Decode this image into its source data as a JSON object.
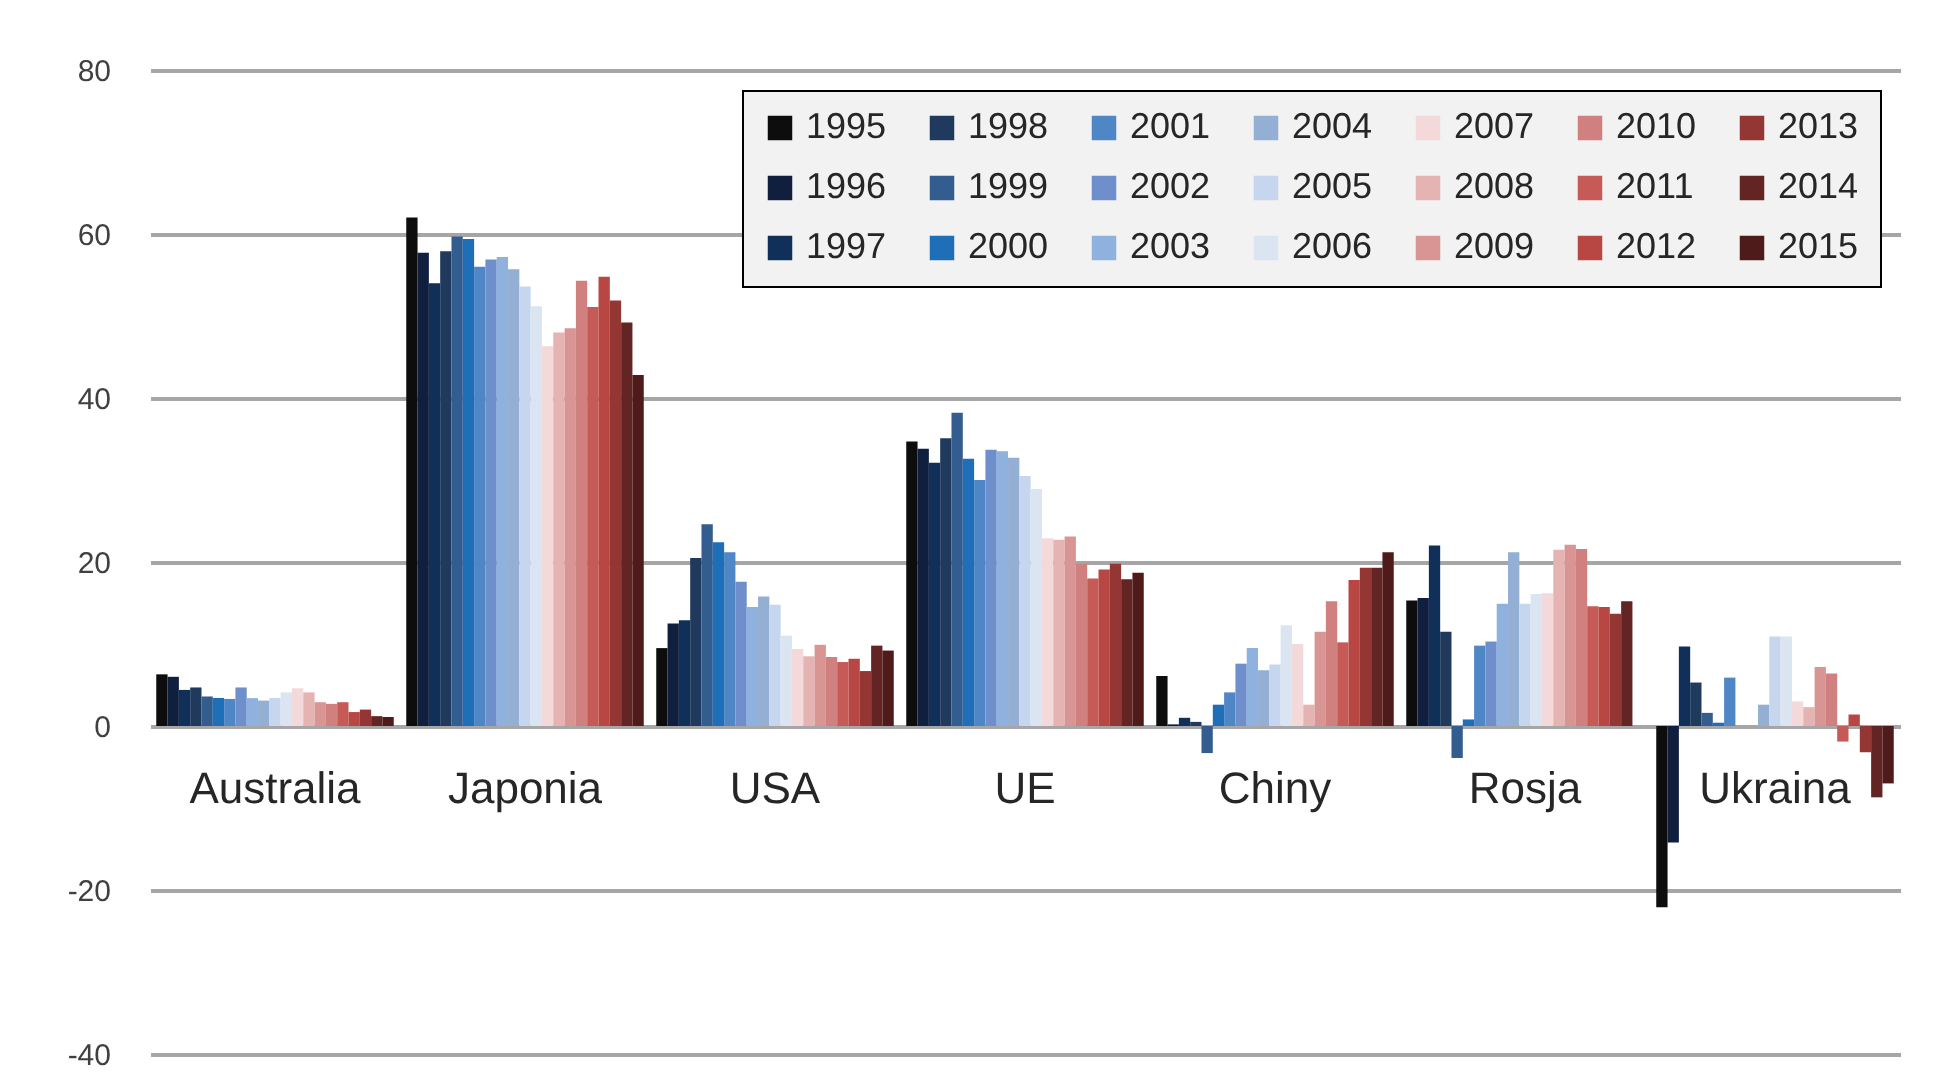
{
  "chart_data": {
    "type": "bar",
    "categories": [
      "Australia",
      "Japonia",
      "USA",
      "UE",
      "Chiny",
      "Rosja",
      "Ukraina"
    ],
    "series": [
      {
        "name": "1995",
        "color": "#0d0d0d",
        "values": [
          6.3,
          62.0,
          9.5,
          34.7,
          6.1,
          15.3,
          -22.1
        ]
      },
      {
        "name": "1996",
        "color": "#0f1f3d",
        "values": [
          6.0,
          57.7,
          12.5,
          33.8,
          0.2,
          15.6,
          -14.2
        ]
      },
      {
        "name": "1997",
        "color": "#10305a",
        "values": [
          4.4,
          54.0,
          12.9,
          32.1,
          1.0,
          22.0,
          9.7
        ]
      },
      {
        "name": "1998",
        "color": "#1f3a5c",
        "values": [
          4.7,
          57.9,
          20.5,
          35.1,
          0.5,
          11.5,
          5.3
        ]
      },
      {
        "name": "1999",
        "color": "#345d8f",
        "values": [
          3.6,
          59.7,
          24.6,
          38.2,
          -3.3,
          -3.9,
          1.6
        ]
      },
      {
        "name": "2000",
        "color": "#1f6fb8",
        "values": [
          3.4,
          59.4,
          22.4,
          32.6,
          2.6,
          0.8,
          0.4
        ]
      },
      {
        "name": "2001",
        "color": "#4f86c6",
        "values": [
          3.3,
          56.0,
          21.2,
          30.0,
          4.1,
          9.8,
          5.9
        ]
      },
      {
        "name": "2002",
        "color": "#6f8fcc",
        "values": [
          4.7,
          56.9,
          17.6,
          33.7,
          7.6,
          10.3,
          null
        ]
      },
      {
        "name": "2003",
        "color": "#8eb1de",
        "values": [
          3.4,
          57.2,
          14.5,
          33.5,
          9.5,
          14.9,
          null
        ]
      },
      {
        "name": "2004",
        "color": "#94afd4",
        "values": [
          3.1,
          55.7,
          15.8,
          32.7,
          6.8,
          21.2,
          2.6
        ]
      },
      {
        "name": "2005",
        "color": "#c5d6ee",
        "values": [
          3.4,
          53.6,
          14.8,
          30.5,
          7.5,
          14.9,
          10.9
        ]
      },
      {
        "name": "2006",
        "color": "#dbe5f2",
        "values": [
          4.1,
          51.2,
          11.0,
          28.9,
          12.3,
          16.1,
          10.9
        ]
      },
      {
        "name": "2007",
        "color": "#f3d9d9",
        "values": [
          4.6,
          46.3,
          9.4,
          22.9,
          10.0,
          16.2,
          3.0
        ]
      },
      {
        "name": "2008",
        "color": "#e5b3b2",
        "values": [
          4.1,
          48.0,
          8.5,
          22.7,
          2.6,
          21.5,
          2.3
        ]
      },
      {
        "name": "2009",
        "color": "#d99594",
        "values": [
          2.9,
          48.5,
          9.9,
          23.1,
          11.5,
          22.1,
          7.2
        ]
      },
      {
        "name": "2010",
        "color": "#d0807e",
        "values": [
          2.7,
          54.3,
          8.4,
          19.8,
          15.2,
          21.6,
          6.4
        ]
      },
      {
        "name": "2011",
        "color": "#c55a57",
        "values": [
          2.9,
          51.1,
          7.8,
          18.0,
          10.2,
          14.6,
          -1.9
        ]
      },
      {
        "name": "2012",
        "color": "#b84643",
        "values": [
          1.7,
          54.8,
          8.2,
          19.1,
          17.8,
          14.5,
          1.4
        ]
      },
      {
        "name": "2013",
        "color": "#943634",
        "values": [
          2.0,
          51.9,
          6.7,
          19.8,
          19.3,
          13.7,
          -3.2
        ]
      },
      {
        "name": "2014",
        "color": "#632523",
        "values": [
          1.2,
          49.2,
          9.8,
          17.9,
          19.3,
          15.2,
          -8.7
        ]
      },
      {
        "name": "2015",
        "color": "#4f1a1a",
        "values": [
          1.1,
          42.8,
          9.2,
          18.7,
          21.2,
          null,
          -7.0
        ]
      }
    ],
    "ylim": [
      -40,
      80
    ],
    "yticks": [
      -40,
      -20,
      0,
      20,
      40,
      60,
      80
    ],
    "grid": "y",
    "legend": "top right"
  }
}
